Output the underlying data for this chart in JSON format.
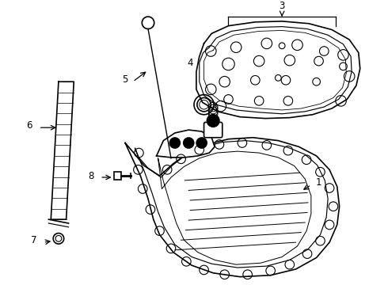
{
  "background_color": "#ffffff",
  "line_color": "#000000",
  "line_width": 1.2,
  "fig_width": 4.9,
  "fig_height": 3.6,
  "dpi": 100
}
